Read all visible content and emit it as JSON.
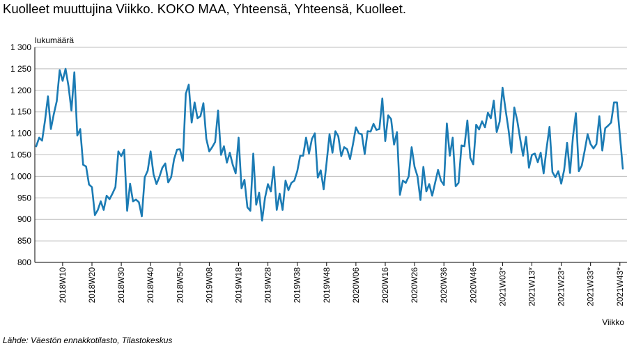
{
  "title": "Kuolleet muuttujina Viikko. KOKO MAA, Yhteensä, Yhteensä, Kuolleet.",
  "source": "Lähde: Väestön ennakkotilasto, Tilastokeskus",
  "colors": {
    "line": "#1b7bb4",
    "grid": "#bdbdbd",
    "axis": "#000000"
  },
  "chart_data": {
    "type": "line",
    "title": "Kuolleet muuttujina Viikko. KOKO MAA, Yhteensä, Yhteensä, Kuolleet.",
    "xlabel": "Viikko",
    "ylabel": "lukumäärä",
    "ylim": [
      800,
      1300
    ],
    "yticks": [
      800,
      850,
      900,
      950,
      1000,
      1050,
      1100,
      1150,
      1200,
      1250,
      1300
    ],
    "ytick_labels": [
      "800",
      "850",
      "900",
      "950",
      "1 000",
      "1 050",
      "1 100",
      "1 150",
      "1 200",
      "1 250",
      "1 300"
    ],
    "x_tick_labels": [
      {
        "label": "2018W10",
        "index": 9
      },
      {
        "label": "2018W20",
        "index": 19
      },
      {
        "label": "2018W30",
        "index": 29
      },
      {
        "label": "2018W40",
        "index": 39
      },
      {
        "label": "2018W50",
        "index": 49
      },
      {
        "label": "2019W08",
        "index": 59
      },
      {
        "label": "2019W18",
        "index": 69
      },
      {
        "label": "2019W28",
        "index": 79
      },
      {
        "label": "2019W38",
        "index": 89
      },
      {
        "label": "2019W48",
        "index": 99
      },
      {
        "label": "2020W06",
        "index": 109
      },
      {
        "label": "2020W16",
        "index": 119
      },
      {
        "label": "2020W26",
        "index": 129
      },
      {
        "label": "2020W36",
        "index": 139
      },
      {
        "label": "2020W46",
        "index": 149
      },
      {
        "label": "2021W03*",
        "index": 159
      },
      {
        "label": "2021W13*",
        "index": 169
      },
      {
        "label": "2021W23*",
        "index": 179
      },
      {
        "label": "2021W33*",
        "index": 189
      },
      {
        "label": "2021W43*",
        "index": 199
      }
    ],
    "series": [
      {
        "name": "Kuolleet",
        "values": [
          1070,
          1090,
          1083,
          1130,
          1186,
          1110,
          1145,
          1175,
          1247,
          1222,
          1250,
          1210,
          1153,
          1242,
          1095,
          1110,
          1027,
          1023,
          981,
          975,
          910,
          922,
          942,
          922,
          955,
          947,
          960,
          975,
          1058,
          1047,
          1062,
          920,
          983,
          942,
          946,
          940,
          907,
          998,
          1013,
          1058,
          1005,
          982,
          999,
          1020,
          1030,
          986,
          998,
          1040,
          1062,
          1063,
          1036,
          1192,
          1213,
          1125,
          1172,
          1135,
          1140,
          1170,
          1087,
          1058,
          1068,
          1080,
          1153,
          1050,
          1070,
          1032,
          1055,
          1027,
          1007,
          1090,
          972,
          992,
          928,
          920,
          1053,
          934,
          962,
          897,
          950,
          982,
          965,
          1022,
          922,
          960,
          922,
          990,
          968,
          985,
          990,
          1012,
          1048,
          1048,
          1090,
          1053,
          1087,
          1100,
          997,
          1014,
          970,
          1032,
          1098,
          1055,
          1105,
          1093,
          1047,
          1068,
          1063,
          1040,
          1075,
          1114,
          1100,
          1098,
          1052,
          1105,
          1104,
          1122,
          1108,
          1110,
          1181,
          1082,
          1142,
          1133,
          1074,
          1103,
          957,
          990,
          985,
          1000,
          1068,
          1022,
          1000,
          945,
          1022,
          965,
          982,
          955,
          985,
          1015,
          990,
          980,
          1123,
          1048,
          1090,
          977,
          985,
          1072,
          1070,
          1130,
          1043,
          1028,
          1120,
          1109,
          1128,
          1114,
          1148,
          1135,
          1176,
          1103,
          1127,
          1206,
          1156,
          1110,
          1055,
          1160,
          1130,
          1087,
          1048,
          1092,
          1020,
          1050,
          1053,
          1033,
          1055,
          1007,
          1065,
          1115,
          1010,
          998,
          1012,
          983,
          1015,
          1078,
          1008,
          1092,
          1147,
          1012,
          1025,
          1060,
          1098,
          1075,
          1065,
          1075,
          1140,
          1060,
          1112,
          1118,
          1125,
          1172,
          1172,
          1095,
          1018
        ]
      }
    ]
  }
}
